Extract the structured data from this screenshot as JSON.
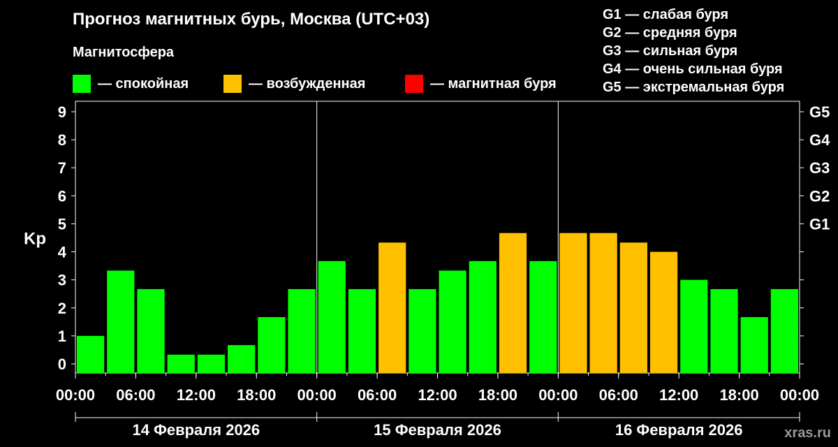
{
  "title": "Прогноз магнитных бурь, Москва (UTC+03)",
  "magnetosphere_label": "Магнитосфера",
  "legend": [
    {
      "label": "— спокойная",
      "color": "#00ff00"
    },
    {
      "label": "— возбужденная",
      "color": "#ffc000"
    },
    {
      "label": "— магнитная буря",
      "color": "#ff0000"
    }
  ],
  "g_legend": [
    "G1 — слабая буря",
    "G2 — средняя буря",
    "G3 — сильная буря",
    "G4 — очень сильная буря",
    "G5 — экстремальная буря"
  ],
  "watermark": "xras.ru",
  "chart_data": {
    "type": "bar",
    "ylabel": "Kp",
    "ylim": [
      0,
      9
    ],
    "yticks": [
      0,
      1,
      2,
      3,
      4,
      5,
      6,
      7,
      8,
      9
    ],
    "right_axis_labels": [
      {
        "value": 5,
        "label": "G1"
      },
      {
        "value": 6,
        "label": "G2"
      },
      {
        "value": 7,
        "label": "G3"
      },
      {
        "value": 8,
        "label": "G4"
      },
      {
        "value": 9,
        "label": "G5"
      }
    ],
    "x_tick_labels": [
      "00:00",
      "06:00",
      "12:00",
      "18:00",
      "00:00",
      "06:00",
      "12:00",
      "18:00",
      "00:00",
      "06:00",
      "12:00",
      "18:00",
      "00:00"
    ],
    "days": [
      "14 Февраля 2026",
      "15 Февраля 2026",
      "16 Февраля 2026"
    ],
    "interval_hours": 3,
    "values": [
      1.0,
      3.33,
      2.67,
      0.33,
      0.33,
      0.67,
      1.67,
      2.67,
      3.67,
      2.67,
      4.33,
      2.67,
      3.33,
      3.67,
      4.67,
      3.67,
      4.67,
      4.67,
      4.33,
      4.0,
      3.0,
      2.67,
      1.67,
      2.67
    ],
    "status": [
      "quiet",
      "quiet",
      "quiet",
      "quiet",
      "quiet",
      "quiet",
      "quiet",
      "quiet",
      "quiet",
      "quiet",
      "unsettled",
      "quiet",
      "quiet",
      "quiet",
      "unsettled",
      "quiet",
      "unsettled",
      "unsettled",
      "unsettled",
      "unsettled",
      "quiet",
      "quiet",
      "quiet",
      "quiet"
    ],
    "status_colors": {
      "quiet": "#00ff00",
      "unsettled": "#ffc000",
      "storm": "#ff0000"
    }
  }
}
